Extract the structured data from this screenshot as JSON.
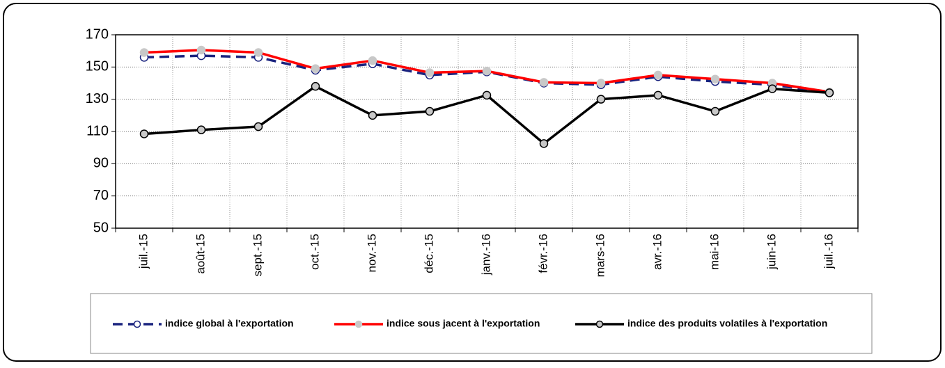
{
  "chart_data": {
    "type": "line",
    "categories": [
      "juil.-15",
      "août-15",
      "sept.-15",
      "oct.-15",
      "nov.-15",
      "déc.-15",
      "janv.-16",
      "févr.-16",
      "mars-16",
      "avr.-16",
      "mai-16",
      "juin-16",
      "juil.-16"
    ],
    "series": [
      {
        "name": "indice global à l'exportation",
        "color": "#1a237e",
        "values": [
          156,
          157,
          156,
          148,
          152,
          145,
          147,
          140,
          139,
          144,
          141,
          139,
          134
        ]
      },
      {
        "name": "indice sous jacent à l'exportation",
        "color": "#ff0000",
        "values": [
          159,
          160.5,
          159,
          149,
          154,
          146.5,
          147.5,
          140.5,
          140,
          145,
          142.5,
          140,
          134.5
        ]
      },
      {
        "name": "indice des produits volatiles à l'exportation",
        "color": "#000000",
        "values": [
          108.5,
          111,
          113,
          138,
          120,
          122.5,
          132.5,
          102.5,
          130,
          132.5,
          122.5,
          136.5,
          134
        ]
      }
    ],
    "ylim": [
      50,
      170
    ],
    "yticks": [
      50,
      70,
      90,
      110,
      130,
      150,
      170
    ],
    "grid": true
  }
}
